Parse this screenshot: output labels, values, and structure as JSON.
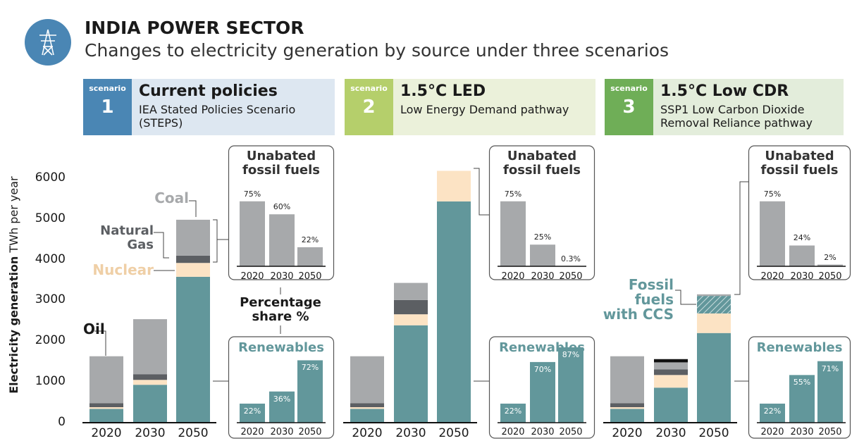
{
  "header": {
    "title": "INDIA POWER SECTOR",
    "subtitle": "Changes to electricity generation by source under three scenarios"
  },
  "chart_data": [
    {
      "type": "bar",
      "stacked": true,
      "scenario_label": "scenario",
      "number": "1",
      "title": "Current policies",
      "subtitle": "IEA Stated Policies Scenario (STEPS)",
      "theme_color": "#4a86b4",
      "theme_background": "#dde7f1",
      "ylabel": "Electricity generation",
      "yunit": "TWh per year",
      "ylim": [
        0,
        6500
      ],
      "yticks": [
        0,
        1000,
        2000,
        3000,
        4000,
        5000,
        6000
      ],
      "categories": [
        "2020",
        "2030",
        "2050"
      ],
      "series": [
        {
          "color": "#62979b",
          "values": [
            340,
            930,
            3580
          ]
        },
        {
          "name": "Nuclear",
          "color": "#fce3c4",
          "values": [
            40,
            120,
            340
          ]
        },
        {
          "name": "Oil",
          "color": "#111111",
          "values": [
            0,
            0,
            0
          ]
        },
        {
          "name": "Natural Gas",
          "color": "#5c5f63",
          "values": [
            100,
            140,
            180
          ]
        },
        {
          "name": "Coal",
          "color": "#a7a9ab",
          "values": [
            1150,
            1350,
            880
          ]
        }
      ],
      "annotation": "Percentage share %",
      "insets": [
        {
          "type": "bar",
          "title": "Unabated fossil fuels",
          "categories": [
            "2020",
            "2030",
            "2050"
          ],
          "values": [
            75,
            60,
            22
          ],
          "value_labels": [
            "75%",
            "60%",
            "22%"
          ],
          "color": "#a7a9ab",
          "ylim": [
            0,
            100
          ]
        },
        {
          "type": "bar",
          "title": "Renewables",
          "categories": [
            "2020",
            "2030",
            "2050"
          ],
          "values": [
            22,
            36,
            72
          ],
          "value_labels": [
            "22%",
            "36%",
            "72%"
          ],
          "color": "#62979b",
          "ylim": [
            0,
            100
          ]
        }
      ]
    },
    {
      "type": "bar",
      "stacked": true,
      "scenario_label": "scenario",
      "number": "2",
      "title": "1.5°C LED",
      "subtitle": "Low Energy Demand pathway",
      "theme_color": "#b5cf6b",
      "theme_background": "#ebf1da",
      "ylim": [
        0,
        6500
      ],
      "categories": [
        "2020",
        "2030",
        "2050"
      ],
      "series": [
        {
          "color": "#62979b",
          "values": [
            340,
            2390,
            5430
          ]
        },
        {
          "color": "#fce3c4",
          "values": [
            40,
            270,
            750
          ]
        },
        {
          "color": "#5c5f63",
          "values": [
            100,
            350,
            0
          ]
        },
        {
          "color": "#a7a9ab",
          "values": [
            1150,
            420,
            0
          ]
        }
      ],
      "insets": [
        {
          "type": "bar",
          "title": "Unabated fossil fuels",
          "categories": [
            "2020",
            "2030",
            "2050"
          ],
          "values": [
            75,
            25,
            0.3
          ],
          "value_labels": [
            "75%",
            "25%",
            "0.3%"
          ],
          "color": "#a7a9ab",
          "ylim": [
            0,
            100
          ]
        },
        {
          "type": "bar",
          "title": "Renewables",
          "categories": [
            "2020",
            "2030",
            "2050"
          ],
          "values": [
            22,
            70,
            87
          ],
          "value_labels": [
            "22%",
            "70%",
            "87%"
          ],
          "color": "#62979b",
          "ylim": [
            0,
            100
          ]
        }
      ]
    },
    {
      "type": "bar",
      "stacked": true,
      "scenario_label": "scenario",
      "number": "3",
      "title": "1.5°C Low CDR",
      "subtitle": "SSP1 Low Carbon Dioxide Removal Reliance pathway",
      "theme_color": "#6fae57",
      "theme_background": "#e3eddb",
      "ylim": [
        0,
        6500
      ],
      "categories": [
        "2020",
        "2030",
        "2050"
      ],
      "series": [
        {
          "color": "#62979b",
          "values": [
            340,
            860,
            2200
          ]
        },
        {
          "color": "#fce3c4",
          "values": [
            40,
            310,
            480
          ]
        },
        {
          "name": "Fossil fuels with CCS",
          "color": "#62979b",
          "pattern": "hatch",
          "values": [
            0,
            0,
            430
          ]
        },
        {
          "color": "#5c5f63",
          "values": [
            100,
            140,
            0
          ]
        },
        {
          "color": "#a7a9ab",
          "values": [
            1150,
            170,
            40
          ]
        },
        {
          "color": "#111111",
          "values": [
            0,
            80,
            0
          ]
        }
      ],
      "insets": [
        {
          "type": "bar",
          "title": "Unabated fossil fuels",
          "categories": [
            "2020",
            "2030",
            "2050"
          ],
          "values": [
            75,
            24,
            2
          ],
          "value_labels": [
            "75%",
            "24%",
            "2%"
          ],
          "color": "#a7a9ab",
          "ylim": [
            0,
            100
          ]
        },
        {
          "type": "bar",
          "title": "Renewables",
          "categories": [
            "2020",
            "2030",
            "2050"
          ],
          "values": [
            22,
            55,
            71
          ],
          "value_labels": [
            "22%",
            "55%",
            "71%"
          ],
          "color": "#62979b",
          "ylim": [
            0,
            100
          ]
        }
      ]
    }
  ]
}
